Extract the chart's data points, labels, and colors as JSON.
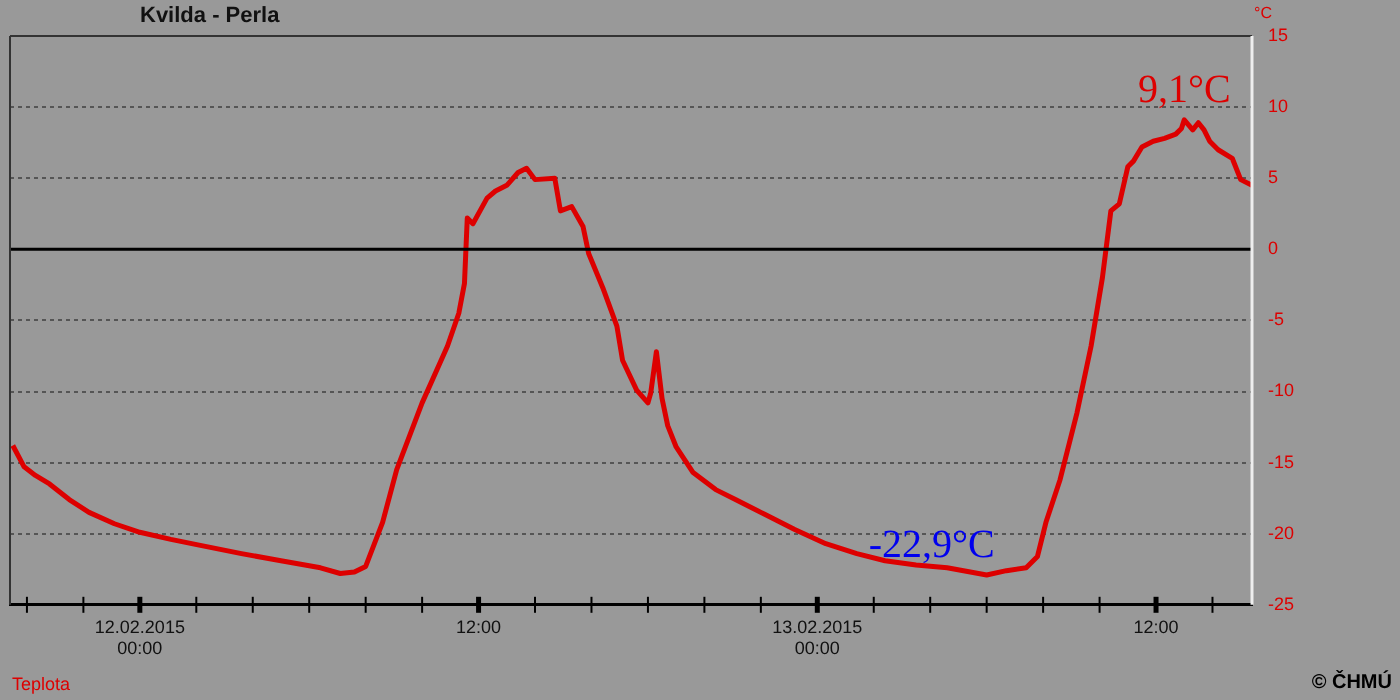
{
  "chart_data": {
    "type": "line",
    "title": "Kvilda - Perla",
    "ylabel": "°C",
    "legend": "bottom left",
    "grid": "y",
    "marker": "none",
    "line_style": "solid",
    "xlim": [
      "2015-02-11T19:24",
      "2015-02-13T15:24"
    ],
    "ylim": [
      -25,
      15
    ],
    "yticks": [
      -25,
      -20,
      -15,
      -10,
      -5,
      0,
      5,
      10,
      15
    ],
    "xticks": [
      {
        "value": "2015-02-11T20:00",
        "label": null
      },
      {
        "value": "2015-02-11T22:00",
        "label": null
      },
      {
        "value": "2015-02-12T00:00",
        "label": "12.02.2015\n00:00"
      },
      {
        "value": "2015-02-12T02:00",
        "label": null
      },
      {
        "value": "2015-02-12T04:00",
        "label": null
      },
      {
        "value": "2015-02-12T06:00",
        "label": null
      },
      {
        "value": "2015-02-12T08:00",
        "label": null
      },
      {
        "value": "2015-02-12T10:00",
        "label": null
      },
      {
        "value": "2015-02-12T12:00",
        "label": "12:00"
      },
      {
        "value": "2015-02-12T14:00",
        "label": null
      },
      {
        "value": "2015-02-12T16:00",
        "label": null
      },
      {
        "value": "2015-02-12T18:00",
        "label": null
      },
      {
        "value": "2015-02-12T20:00",
        "label": null
      },
      {
        "value": "2015-02-12T22:00",
        "label": null
      },
      {
        "value": "2015-02-13T00:00",
        "label": "13.02.2015\n00:00"
      },
      {
        "value": "2015-02-13T02:00",
        "label": null
      },
      {
        "value": "2015-02-13T04:00",
        "label": null
      },
      {
        "value": "2015-02-13T06:00",
        "label": null
      },
      {
        "value": "2015-02-13T08:00",
        "label": null
      },
      {
        "value": "2015-02-13T10:00",
        "label": null
      },
      {
        "value": "2015-02-13T12:00",
        "label": "12:00"
      },
      {
        "value": "2015-02-13T14:00",
        "label": null
      }
    ],
    "ref_lines": [
      {
        "axis": "y",
        "value": 0,
        "color": "#000000",
        "line_style": "solid"
      }
    ],
    "annotations": [
      {
        "text": "9,1°C",
        "x": "2015-02-13T13:00",
        "y": 9.1
      },
      {
        "text": "-22,9°C",
        "x": "2015-02-13T06:00",
        "y": -22.9
      },
      "© ČHMÚ"
    ],
    "series": [
      {
        "name": "Teplota",
        "color": "#dd0000",
        "x": [
          "2015-02-11T19:30",
          "2015-02-11T19:54",
          "2015-02-11T20:18",
          "2015-02-11T20:48",
          "2015-02-11T21:30",
          "2015-02-11T22:12",
          "2015-02-11T23:06",
          "2015-02-12T00:00",
          "2015-02-12T01:06",
          "2015-02-12T02:06",
          "2015-02-12T03:36",
          "2015-02-12T05:00",
          "2015-02-12T06:24",
          "2015-02-12T07:06",
          "2015-02-12T07:36",
          "2015-02-12T08:00",
          "2015-02-12T08:36",
          "2015-02-12T09:06",
          "2015-02-12T10:00",
          "2015-02-12T10:54",
          "2015-02-12T11:18",
          "2015-02-12T11:30",
          "2015-02-12T11:36",
          "2015-02-12T11:48",
          "2015-02-12T12:18",
          "2015-02-12T12:36",
          "2015-02-12T13:00",
          "2015-02-12T13:24",
          "2015-02-12T13:42",
          "2015-02-12T14:00",
          "2015-02-12T14:42",
          "2015-02-12T14:54",
          "2015-02-12T15:18",
          "2015-02-12T15:42",
          "2015-02-12T15:54",
          "2015-02-12T16:24",
          "2015-02-12T16:54",
          "2015-02-12T17:06",
          "2015-02-12T17:36",
          "2015-02-12T18:00",
          "2015-02-12T18:06",
          "2015-02-12T18:18",
          "2015-02-12T18:30",
          "2015-02-12T18:42",
          "2015-02-12T19:00",
          "2015-02-12T19:36",
          "2015-02-12T20:24",
          "2015-02-12T21:06",
          "2015-02-12T22:06",
          "2015-02-12T23:12",
          "2015-02-13T00:18",
          "2015-02-13T01:24",
          "2015-02-13T02:24",
          "2015-02-13T03:30",
          "2015-02-13T04:36",
          "2015-02-13T06:00",
          "2015-02-13T06:42",
          "2015-02-13T07:24",
          "2015-02-13T07:48",
          "2015-02-13T08:06",
          "2015-02-13T08:36",
          "2015-02-13T09:12",
          "2015-02-13T09:42",
          "2015-02-13T10:06",
          "2015-02-13T10:24",
          "2015-02-13T10:42",
          "2015-02-13T11:00",
          "2015-02-13T11:12",
          "2015-02-13T11:30",
          "2015-02-13T11:54",
          "2015-02-13T12:18",
          "2015-02-13T12:42",
          "2015-02-13T12:54",
          "2015-02-13T13:00",
          "2015-02-13T13:18",
          "2015-02-13T13:30",
          "2015-02-13T13:42",
          "2015-02-13T13:54",
          "2015-02-13T14:12",
          "2015-02-13T14:42",
          "2015-02-13T15:00",
          "2015-02-13T15:24"
        ],
        "values": [
          -13.8,
          -15.3,
          -15.9,
          -16.5,
          -17.6,
          -18.5,
          -19.3,
          -19.9,
          -20.4,
          -20.8,
          -21.4,
          -21.9,
          -22.4,
          -22.8,
          -22.7,
          -22.3,
          -19.2,
          -15.5,
          -10.8,
          -6.8,
          -4.5,
          -2.4,
          2.2,
          1.8,
          3.6,
          4.1,
          4.5,
          5.4,
          5.7,
          4.9,
          5,
          2.7,
          3,
          1.6,
          -0.3,
          -2.7,
          -5.4,
          -7.8,
          -9.9,
          -10.8,
          -10.1,
          -7.2,
          -10.5,
          -12.4,
          -13.9,
          -15.7,
          -16.9,
          -17.6,
          -18.6,
          -19.7,
          -20.7,
          -21.4,
          -21.9,
          -22.2,
          -22.4,
          -22.9,
          -22.6,
          -22.4,
          -21.6,
          -19.2,
          -16.2,
          -11.5,
          -6.8,
          -2,
          2.7,
          3.2,
          5.8,
          6.2,
          7.2,
          7.6,
          7.8,
          8.1,
          8.5,
          9.1,
          8.4,
          8.9,
          8.4,
          7.6,
          7,
          6.4,
          4.9,
          4.5
        ]
      }
    ]
  }
}
